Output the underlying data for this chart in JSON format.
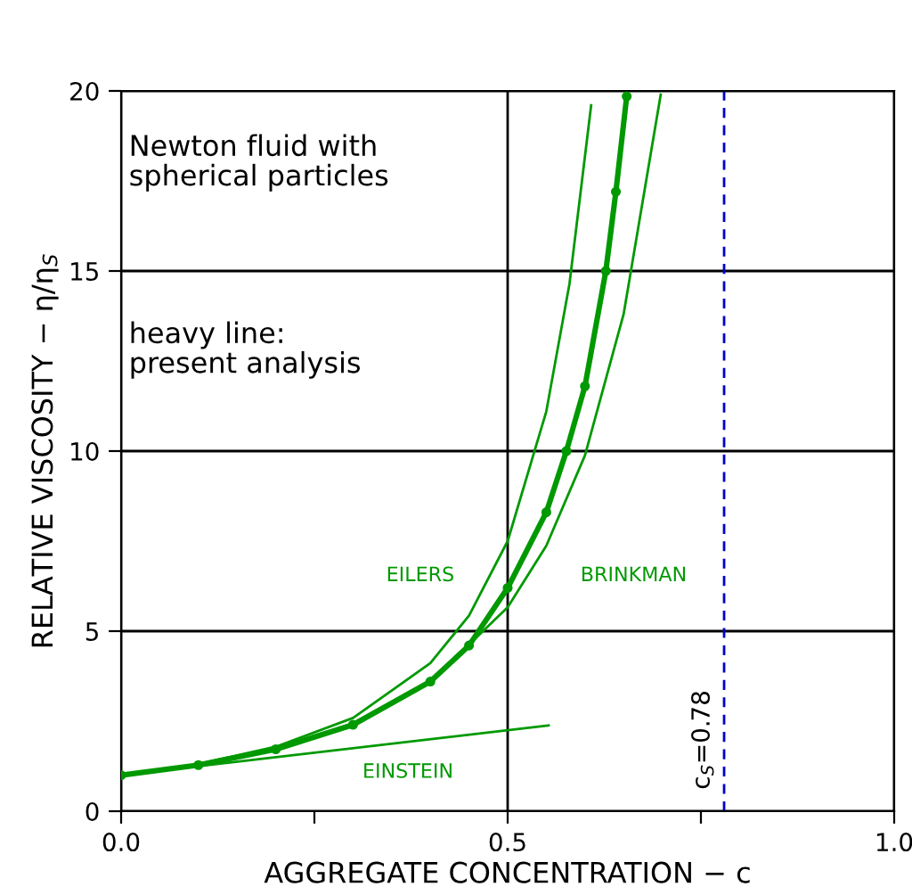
{
  "chart_data": {
    "type": "line",
    "xlabel": "AGGREGATE CONCENTRATION − c",
    "ylabel": "RELATIVE VISCOSITY − η/η$_{S}$",
    "xlim": [
      0,
      1
    ],
    "ylim": [
      0,
      20
    ],
    "xticks": [
      {
        "value": 0,
        "label": "0.0"
      },
      {
        "value": 0.25,
        "label": null
      },
      0.5,
      {
        "value": 0.75,
        "label": null
      },
      {
        "value": 1,
        "label": "1.0"
      }
    ],
    "yticks": [
      0,
      5,
      10,
      15,
      20
    ],
    "grid": true,
    "series": [
      {
        "name": "EILERS",
        "color": "#009900",
        "x": [
          0,
          0.1,
          0.2,
          0.3,
          0.4,
          0.45,
          0.5,
          0.55,
          0.58,
          0.608
        ],
        "values": [
          1.0,
          1.31,
          1.79,
          2.59,
          4.11,
          5.43,
          7.5,
          11.1,
          14.65,
          19.6
        ],
        "marker": "none"
      },
      {
        "name": "BRINKMAN",
        "color": "#009900",
        "x": [
          0,
          0.1,
          0.2,
          0.3,
          0.4,
          0.5,
          0.55,
          0.6,
          0.65,
          0.698
        ],
        "values": [
          1.0,
          1.3,
          1.75,
          2.44,
          3.59,
          5.66,
          7.37,
          9.88,
          13.8,
          19.9
        ],
        "marker": "none"
      },
      {
        "color": "#009900",
        "x": [
          0,
          0.1,
          0.2,
          0.3,
          0.4,
          0.45,
          0.5,
          0.55,
          0.576,
          0.6,
          0.627,
          0.64,
          0.654
        ],
        "values": [
          1.0,
          1.28,
          1.72,
          2.4,
          3.6,
          4.6,
          6.2,
          8.3,
          10.0,
          11.8,
          15.0,
          17.2,
          19.85
        ],
        "marker": "circle"
      },
      {
        "name": "EINSTEIN",
        "color": "#009900",
        "x": [
          0,
          0.553
        ],
        "values": [
          1.0,
          2.38
        ],
        "marker": "none"
      }
    ],
    "ref_lines": [
      {
        "axis": "x",
        "value": 0.78,
        "label": "c$_{S}$=0.78",
        "color": "#0000cc",
        "line_style": "dashed"
      }
    ],
    "annotations": [
      "Newton fluid with\nspherical particles",
      "heavy line:\npresent analysis"
    ]
  }
}
